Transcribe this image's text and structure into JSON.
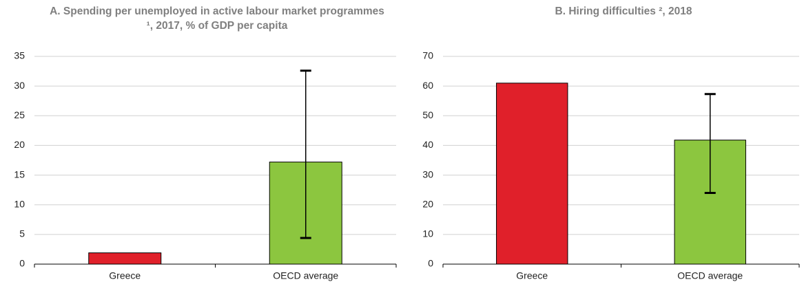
{
  "chart_data": [
    {
      "type": "bar",
      "title": "A. Spending per unemployed in active labour market programmes ¹, 2017, % of GDP per capita",
      "categories": [
        "Greece",
        "OECD average"
      ],
      "values": [
        1.9,
        17.2
      ],
      "colors": [
        "#e0202a",
        "#8cc63f"
      ],
      "error_low": [
        null,
        4.4
      ],
      "error_high": [
        null,
        32.6
      ],
      "ylim": [
        0,
        35
      ],
      "yticks": [
        0,
        5,
        10,
        15,
        20,
        25,
        30,
        35
      ],
      "grid": true
    },
    {
      "type": "bar",
      "title": "B. Hiring difficulties ², 2018",
      "categories": [
        "Greece",
        "OECD average"
      ],
      "values": [
        61,
        41.8
      ],
      "colors": [
        "#e0202a",
        "#8cc63f"
      ],
      "error_low": [
        null,
        24
      ],
      "error_high": [
        null,
        57.3
      ],
      "ylim": [
        0,
        70
      ],
      "yticks": [
        0,
        10,
        20,
        30,
        40,
        50,
        60,
        70
      ],
      "grid": true
    }
  ]
}
